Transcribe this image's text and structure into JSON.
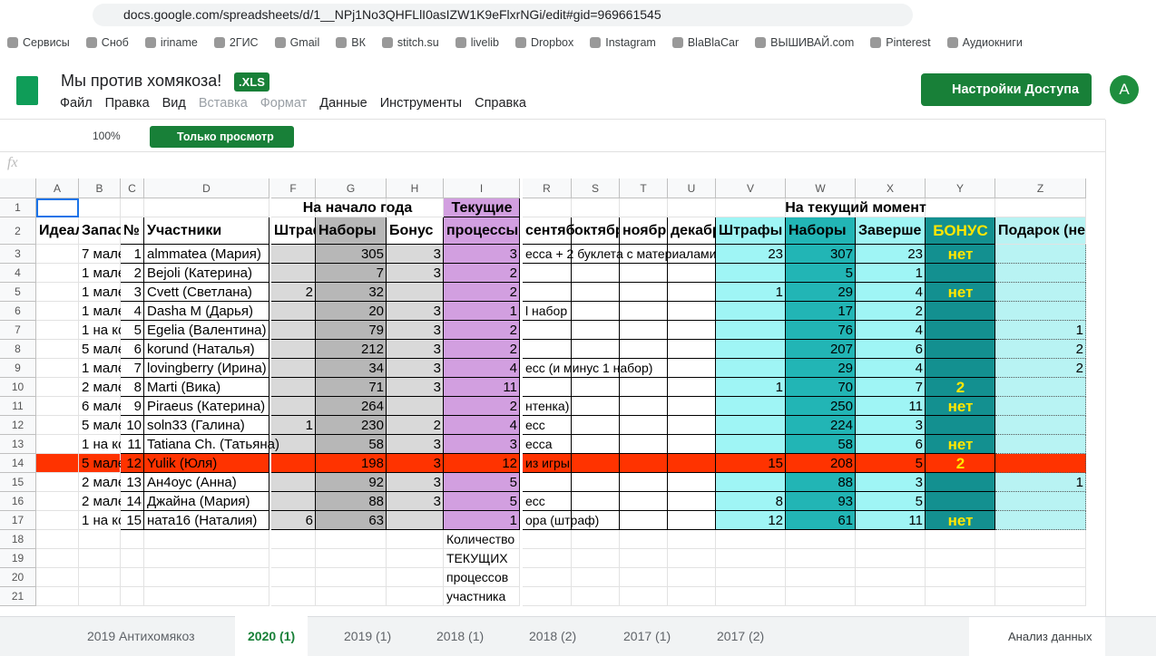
{
  "browser": {
    "url": "docs.google.com/spreadsheets/d/1__NPj1No3QHFLlI0asIZW1K9eFlxrNGi/edit#gid=969661545",
    "bookmarks": [
      "Сервисы",
      "Сноб",
      "iriname",
      "2ГИС",
      "Gmail",
      "ВК",
      "stitch.su",
      "livelib",
      "Dropbox",
      "Instagram",
      "BlaBlaCar",
      "ВЫШИВАЙ.com",
      "Pinterest",
      "Аудиокниги"
    ]
  },
  "header": {
    "title": "Мы против хомякоза!",
    "badge": ".XLS",
    "menu": [
      "Файл",
      "Правка",
      "Вид",
      "Вставка",
      "Формат",
      "Данные",
      "Инструменты",
      "Справка"
    ],
    "share": "Настройки Доступа",
    "avatar": "A"
  },
  "toolbar": {
    "zoom": "100%",
    "mode": "Только просмотр",
    "fx": "fx"
  },
  "table": {
    "columns": [
      "A",
      "B",
      "C",
      "D",
      "F",
      "G",
      "H",
      "I",
      "R",
      "S",
      "T",
      "U",
      "V",
      "W",
      "X",
      "Y",
      "Z"
    ],
    "row_numbers": [
      1,
      2,
      3,
      4,
      5,
      6,
      7,
      8,
      9,
      10,
      11,
      12,
      13,
      14,
      15,
      16,
      17,
      18,
      19,
      20,
      21
    ],
    "rows": [
      {
        "F": "На начало года",
        "I": "Текущие",
        "V": "На текущий момент"
      },
      {
        "A": "Идеал",
        "B": "Запас",
        "C": "№",
        "D": "Участники",
        "F": "Штраф",
        "G": "Наборы",
        "H": "Бонус",
        "I": "процессы",
        "R": "сентяб",
        "S": "октябр",
        "T": "ноябр",
        "U": "декабр",
        "V": "Штрафы",
        "W": "Наборы",
        "X": "Заверше",
        "Y": "БОНУС",
        "Z": "Подарок (не"
      },
      {
        "B": "7 мале",
        "C": 1,
        "D": "almmatea (Мария)",
        "G": 305,
        "H": 3,
        "I": 3,
        "R": "есса + 2 буклета с материалами",
        "V": 23,
        "W": 307,
        "X": 23,
        "Y": "нет"
      },
      {
        "B": "1 мале",
        "C": 2,
        "D": "Bejoli (Катерина)",
        "G": 7,
        "H": 3,
        "I": 2,
        "W": 5,
        "X": 1
      },
      {
        "B": "1 мале",
        "C": 3,
        "D": "Cvett (Светлана)",
        "F": 2,
        "G": 32,
        "I": 2,
        "V": 1,
        "W": 29,
        "X": 4,
        "Y": "нет"
      },
      {
        "B": "1 мале",
        "C": 4,
        "D": "Dasha M (Дарья)",
        "G": 20,
        "H": 3,
        "I": 1,
        "R": "l набор",
        "W": 17,
        "X": 2
      },
      {
        "B": "1 на ко",
        "C": 5,
        "D": "Egelia (Валентина)",
        "G": 79,
        "H": 3,
        "I": 2,
        "W": 76,
        "X": 4,
        "Z": 1
      },
      {
        "B": "5 мале",
        "C": 6,
        "D": "korund (Наталья)",
        "G": 212,
        "H": 3,
        "I": 2,
        "W": 207,
        "X": 6,
        "Z": 2
      },
      {
        "B": "1 мале",
        "C": 7,
        "D": "lovingberry (Ирина)",
        "G": 34,
        "H": 3,
        "I": 4,
        "R": "есс (и минус 1 набор)",
        "W": 29,
        "X": 4,
        "Z": 2
      },
      {
        "B": "2 мале",
        "C": 8,
        "D": "Marti (Вика)",
        "G": 71,
        "H": 3,
        "I": 11,
        "V": 1,
        "W": 70,
        "X": 7,
        "Y": "2"
      },
      {
        "B": "6 мале",
        "C": 9,
        "D": "Piraeus (Катерина)",
        "G": 264,
        "I": 2,
        "R": "нтенка)",
        "W": 250,
        "X": 11,
        "Y": "нет"
      },
      {
        "B": "5 мале",
        "C": 10,
        "D": "soln33 (Галина)",
        "F": 1,
        "G": 230,
        "H": 2,
        "I": 4,
        "R": "есс",
        "W": 224,
        "X": 3
      },
      {
        "B": "1 на ко",
        "C": 11,
        "D": "Tatiana Ch. (Татьяна)",
        "G": 58,
        "H": 3,
        "I": 3,
        "R": "есса",
        "W": 58,
        "X": 6,
        "Y": "нет"
      },
      {
        "B": "5 мале",
        "C": 12,
        "D": "Yulik (Юля)",
        "G": 198,
        "H": 3,
        "I": 12,
        "R": "из игры",
        "V": 15,
        "W": 208,
        "X": 5,
        "Y": "2"
      },
      {
        "B": "2 мале",
        "C": 13,
        "D": "Ан4оус (Анна)",
        "G": 92,
        "H": 3,
        "I": 5,
        "W": 88,
        "X": 3,
        "Z": 1
      },
      {
        "B": "2 мале",
        "C": 14,
        "D": "Джайна (Мария)",
        "G": 88,
        "H": 3,
        "I": 5,
        "R": "есс",
        "V": 8,
        "W": 93,
        "X": 5
      },
      {
        "B": "1 на ко",
        "C": 15,
        "D": "ната16 (Наталия)",
        "F": 6,
        "G": 63,
        "I": 1,
        "R": "ора (штраф)",
        "V": 12,
        "W": 61,
        "X": 11,
        "Y": "нет"
      },
      {
        "I": "Количество"
      },
      {
        "I": "ТЕКУЩИХ"
      },
      {
        "I": "процессов"
      },
      {
        "I": "участника"
      }
    ]
  },
  "tabs": [
    "2019 Антихомякоз",
    "2020 (1)",
    "2019 (1)",
    "2018 (1)",
    "2018 (2)",
    "2017 (1)",
    "2017 (2)"
  ],
  "explore": "Анализ данных"
}
